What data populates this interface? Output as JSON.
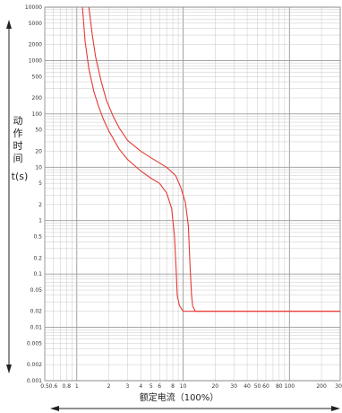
{
  "chart_data": {
    "type": "line",
    "title": "",
    "xlabel": "额定电流（100%）",
    "ylabel_chars": [
      "动",
      "作",
      "时",
      "间"
    ],
    "ylabel_unit": "t(s)",
    "x_scale": "log",
    "y_scale": "log",
    "xlim": [
      0.5,
      300
    ],
    "ylim": [
      0.001,
      10000
    ],
    "x_ticks": [
      0.5,
      0.6,
      0.8,
      1,
      2,
      3,
      4,
      5,
      6,
      8,
      10,
      20,
      30,
      40,
      50,
      60,
      80,
      100,
      200,
      300
    ],
    "x_tick_labels": [
      "0.5",
      "0.6",
      "0.8",
      "1",
      "2",
      "3",
      "4",
      "5",
      "6",
      "8",
      "10",
      "20",
      "30",
      "40",
      "50",
      "60",
      "80",
      "100",
      "200",
      "300"
    ],
    "y_ticks": [
      10000,
      5000,
      2000,
      1000,
      500,
      200,
      100,
      50,
      20,
      10,
      5,
      2,
      1,
      0.5,
      0.2,
      0.1,
      0.05,
      0.02,
      0.01,
      0.005,
      0.002,
      0.001
    ],
    "y_tick_labels": [
      "10000",
      "5000",
      "2000",
      "1000",
      "500",
      "200",
      "100",
      "50",
      "20",
      "10",
      "5",
      "2",
      "1",
      "0.5",
      "0.2",
      "0.1",
      "0.05",
      "0.02",
      "0.01",
      "0.005",
      "0.002",
      "0.001"
    ],
    "grid": true,
    "line_color": "#e53935",
    "series": [
      {
        "x": [
          1.13,
          1.2,
          1.3,
          1.45,
          1.6,
          1.8,
          2.0,
          2.5,
          3.0,
          4.0,
          5.0,
          6.0,
          7.0,
          7.8,
          8.3,
          8.6,
          8.8,
          9.2,
          10,
          20,
          50,
          100,
          200,
          300
        ],
        "y": [
          10000,
          2200,
          700,
          260,
          140,
          75,
          48,
          22,
          14,
          8.5,
          6.2,
          5.0,
          3.3,
          1.7,
          0.5,
          0.12,
          0.04,
          0.026,
          0.02,
          0.02,
          0.02,
          0.02,
          0.02,
          0.02
        ]
      },
      {
        "x": [
          1.3,
          1.4,
          1.5,
          1.7,
          1.9,
          2.2,
          2.5,
          3.0,
          4.0,
          5.0,
          6.0,
          7.0,
          8.5,
          9.5,
          10.5,
          11.2,
          11.6,
          12.0,
          12.3,
          13,
          20,
          50,
          100,
          200,
          300
        ],
        "y": [
          10000,
          3000,
          1200,
          400,
          180,
          90,
          55,
          32,
          20,
          15,
          12,
          10,
          7,
          4.2,
          2.2,
          0.8,
          0.15,
          0.04,
          0.025,
          0.02,
          0.02,
          0.02,
          0.02,
          0.02,
          0.02
        ]
      }
    ]
  }
}
